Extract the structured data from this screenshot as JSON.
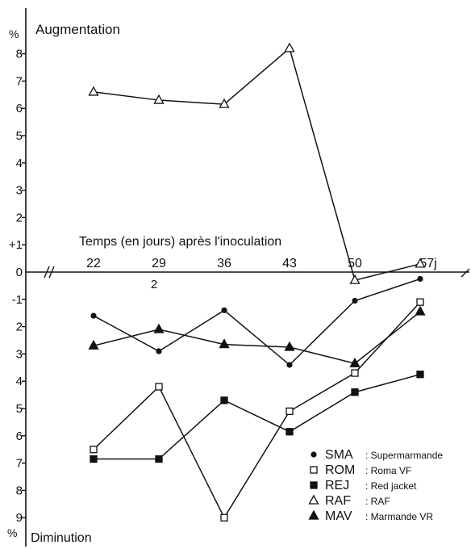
{
  "chart_data": {
    "type": "line",
    "top_label": "Augmentation",
    "bottom_label": "Diminution",
    "y_unit_top": "%",
    "y_unit_bottom": "%",
    "xlabel": "Temps (en jours) après l'inoculation",
    "x": [
      22,
      29,
      36,
      43,
      50,
      57
    ],
    "x_tick_labels": [
      "22",
      "29",
      "36",
      "43",
      "50",
      "57j"
    ],
    "x_extra_label": "2",
    "y_ticks_top": [
      "+1",
      "2",
      "3",
      "4",
      "5",
      "6",
      "7",
      "8"
    ],
    "y_ticks_bottom": [
      "0",
      "-1",
      "2",
      "3",
      "4",
      "5",
      "6",
      "7",
      "8",
      "9"
    ],
    "ylim": [
      -9.5,
      8.6
    ],
    "series": [
      {
        "name": "SMA",
        "description": "Supermarmande",
        "marker": "circle-filled",
        "values": [
          -1.6,
          -2.9,
          -1.4,
          -3.4,
          -1.05,
          -0.25
        ]
      },
      {
        "name": "ROM",
        "description": "Roma VF",
        "marker": "square-open",
        "values": [
          -6.5,
          -4.2,
          -9.0,
          -5.1,
          -3.7,
          -1.1
        ]
      },
      {
        "name": "REJ",
        "description": "Red jacket",
        "marker": "square-filled",
        "values": [
          -6.85,
          -6.85,
          -4.7,
          -5.85,
          -4.4,
          -3.75
        ]
      },
      {
        "name": "RAF",
        "description": "RAF",
        "marker": "triangle-open",
        "values": [
          6.6,
          6.3,
          6.15,
          8.2,
          -0.3,
          0.3
        ]
      },
      {
        "name": "MAV",
        "description": "Marmande VR",
        "marker": "triangle-filled",
        "values": [
          -2.7,
          -2.1,
          -2.65,
          -2.75,
          -3.35,
          -1.45
        ]
      }
    ],
    "legend_position": "bottom-right",
    "grid": false
  }
}
